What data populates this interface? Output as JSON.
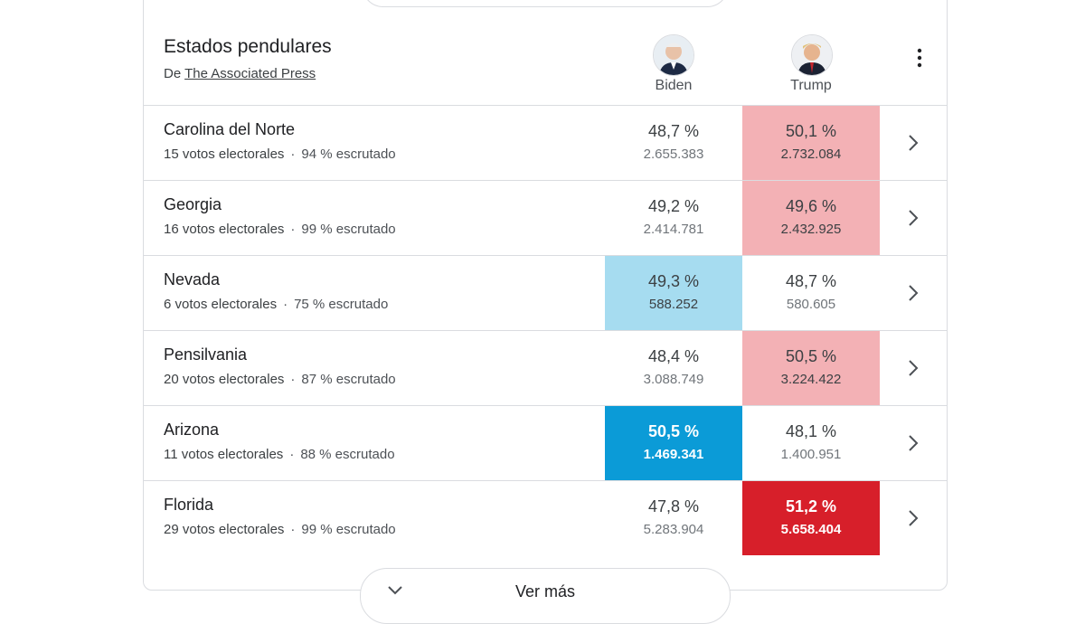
{
  "header": {
    "title": "Estados pendulares",
    "source_prefix": "De",
    "source": "The Associated Press"
  },
  "candidates": [
    "Biden",
    "Trump"
  ],
  "separator": "·",
  "rows": [
    {
      "state": "Carolina del Norte",
      "electoral": "15 votos electorales",
      "reported": "94 % escrutado",
      "results": [
        {
          "pct": "48,7 %",
          "votes": "2.655.383"
        },
        {
          "pct": "50,1 %",
          "votes": "2.732.084"
        }
      ],
      "highlight": {
        "candidate": 1,
        "color": "#f3b1b5",
        "text_color": "#3c4043",
        "bold": false
      }
    },
    {
      "state": "Georgia",
      "electoral": "16 votos electorales",
      "reported": "99 % escrutado",
      "results": [
        {
          "pct": "49,2 %",
          "votes": "2.414.781"
        },
        {
          "pct": "49,6 %",
          "votes": "2.432.925"
        }
      ],
      "highlight": {
        "candidate": 1,
        "color": "#f3b1b5",
        "text_color": "#3c4043",
        "bold": false
      }
    },
    {
      "state": "Nevada",
      "electoral": "6 votos electorales",
      "reported": "75 % escrutado",
      "results": [
        {
          "pct": "49,3 %",
          "votes": "588.252"
        },
        {
          "pct": "48,7 %",
          "votes": "580.605"
        }
      ],
      "highlight": {
        "candidate": 0,
        "color": "#a6dcf0",
        "text_color": "#3c4043",
        "bold": false
      }
    },
    {
      "state": "Pensilvania",
      "electoral": "20 votos electorales",
      "reported": "87 % escrutado",
      "results": [
        {
          "pct": "48,4 %",
          "votes": "3.088.749"
        },
        {
          "pct": "50,5 %",
          "votes": "3.224.422"
        }
      ],
      "highlight": {
        "candidate": 1,
        "color": "#f3b1b5",
        "text_color": "#3c4043",
        "bold": false
      }
    },
    {
      "state": "Arizona",
      "electoral": "11 votos electorales",
      "reported": "88 % escrutado",
      "results": [
        {
          "pct": "50,5 %",
          "votes": "1.469.341"
        },
        {
          "pct": "48,1 %",
          "votes": "1.400.951"
        }
      ],
      "highlight": {
        "candidate": 0,
        "color": "#0b9bd7",
        "text_color": "#ffffff",
        "bold": true
      }
    },
    {
      "state": "Florida",
      "electoral": "29 votos electorales",
      "reported": "99 % escrutado",
      "results": [
        {
          "pct": "47,8 %",
          "votes": "5.283.904"
        },
        {
          "pct": "51,2 %",
          "votes": "5.658.404"
        }
      ],
      "highlight": {
        "candidate": 1,
        "color": "#d71f2a",
        "text_color": "#ffffff",
        "bold": true
      }
    }
  ],
  "more": "Ver más"
}
